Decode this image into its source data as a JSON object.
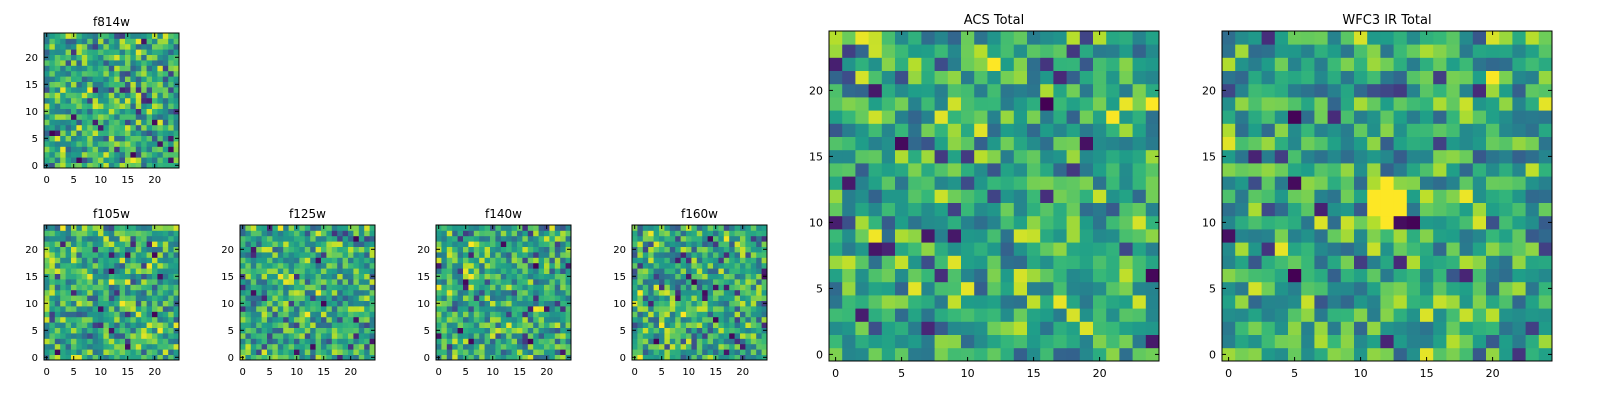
{
  "chart_data": [
    {
      "type": "heatmap",
      "title": "f814w",
      "xticks": [
        0,
        5,
        10,
        15,
        20
      ],
      "yticks": [
        0,
        5,
        10,
        15,
        20
      ],
      "xlim": [
        -0.5,
        24.5
      ],
      "ylim": [
        -0.5,
        24.5
      ],
      "grid_size": 25,
      "colormap": "viridis",
      "seed": 814,
      "value_range": [
        0,
        1
      ]
    },
    {
      "type": "heatmap",
      "title": "f105w",
      "xticks": [
        0,
        5,
        10,
        15,
        20
      ],
      "yticks": [
        0,
        5,
        10,
        15,
        20
      ],
      "xlim": [
        -0.5,
        24.5
      ],
      "ylim": [
        -0.5,
        24.5
      ],
      "grid_size": 25,
      "colormap": "viridis",
      "seed": 105,
      "value_range": [
        0,
        1
      ]
    },
    {
      "type": "heatmap",
      "title": "f125w",
      "xticks": [
        0,
        5,
        10,
        15,
        20
      ],
      "yticks": [
        0,
        5,
        10,
        15,
        20
      ],
      "xlim": [
        -0.5,
        24.5
      ],
      "ylim": [
        -0.5,
        24.5
      ],
      "grid_size": 25,
      "colormap": "viridis",
      "seed": 125,
      "value_range": [
        0,
        1
      ]
    },
    {
      "type": "heatmap",
      "title": "f140w",
      "xticks": [
        0,
        5,
        10,
        15,
        20
      ],
      "yticks": [
        0,
        5,
        10,
        15,
        20
      ],
      "xlim": [
        -0.5,
        24.5
      ],
      "ylim": [
        -0.5,
        24.5
      ],
      "grid_size": 25,
      "colormap": "viridis",
      "seed": 140,
      "value_range": [
        0,
        1
      ]
    },
    {
      "type": "heatmap",
      "title": "f160w",
      "xticks": [
        0,
        5,
        10,
        15,
        20
      ],
      "yticks": [
        0,
        5,
        10,
        15,
        20
      ],
      "xlim": [
        -0.5,
        24.5
      ],
      "ylim": [
        -0.5,
        24.5
      ],
      "grid_size": 25,
      "colormap": "viridis",
      "seed": 160,
      "value_range": [
        0,
        1
      ]
    },
    {
      "type": "heatmap",
      "title": "ACS Total",
      "xticks": [
        0,
        5,
        10,
        15,
        20
      ],
      "yticks": [
        0,
        5,
        10,
        15,
        20
      ],
      "xlim": [
        -0.5,
        24.5
      ],
      "ylim": [
        -0.5,
        24.5
      ],
      "grid_size": 25,
      "colormap": "viridis",
      "seed": 9001,
      "value_range": [
        0,
        1
      ]
    },
    {
      "type": "heatmap",
      "title": "WFC3 IR Total",
      "xticks": [
        0,
        5,
        10,
        15,
        20
      ],
      "yticks": [
        0,
        5,
        10,
        15,
        20
      ],
      "xlim": [
        -0.5,
        24.5
      ],
      "ylim": [
        -0.5,
        24.5
      ],
      "grid_size": 25,
      "colormap": "viridis",
      "seed": 9002,
      "value_range": [
        0,
        1
      ]
    }
  ]
}
